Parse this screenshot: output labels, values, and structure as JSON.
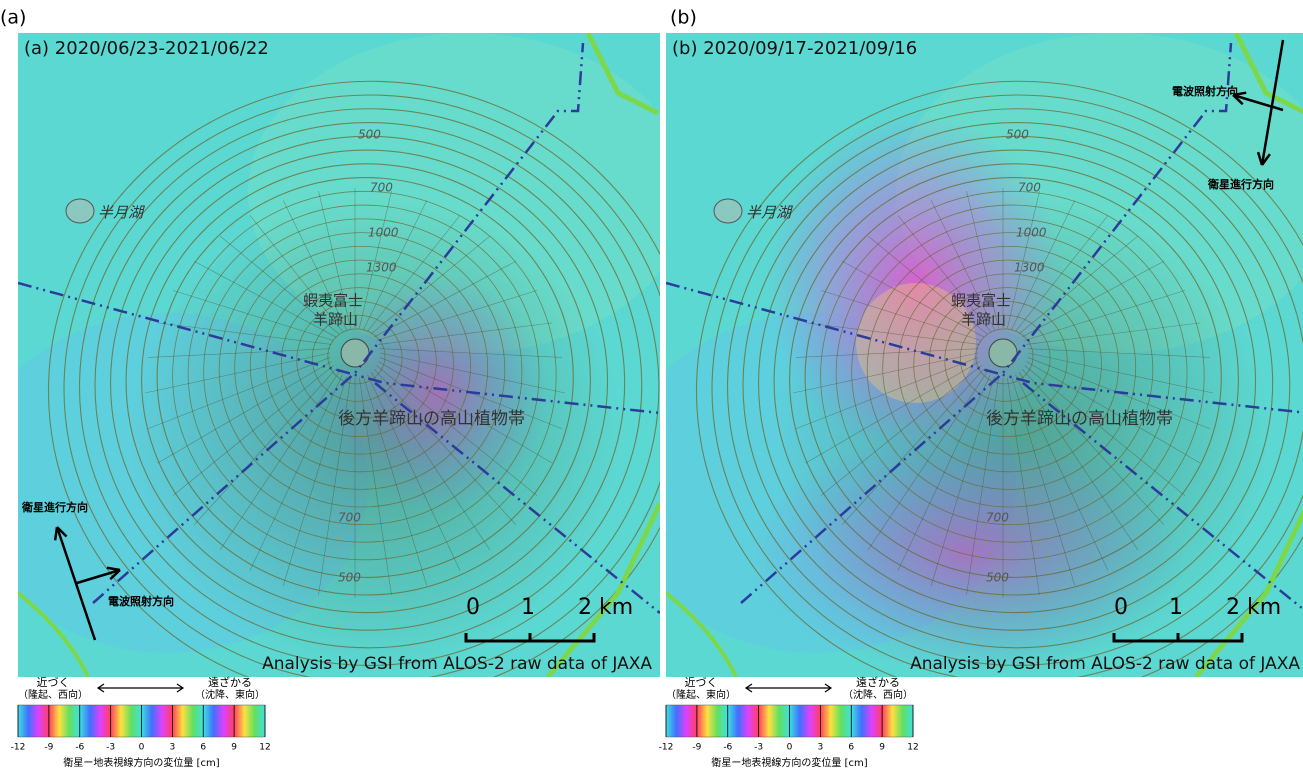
{
  "panels": [
    {
      "label": "(a)",
      "title": "(a) 2020/06/23-2021/06/22",
      "lake": "半月湖",
      "mountain": [
        "蝦夷富士",
        "羊蹄山"
      ],
      "zone": "後方羊蹄山の高山植物帯",
      "contours": [
        "500",
        "700",
        "1000",
        "1300",
        "700",
        "500"
      ],
      "flight_direction": "衛星進行方向",
      "look_direction": "電波照射方向",
      "scale": [
        "0",
        "1",
        "2 km"
      ],
      "credit": "Analysis by GSI from ALOS-2 raw data of JAXA",
      "colorbar": {
        "near": "近づく",
        "near_note": "（隆起、西向）",
        "far": "遠ざかる",
        "far_note": "（沈降、東向）",
        "ticks": [
          -12,
          -9,
          -6,
          -3,
          0,
          3,
          6,
          9,
          12
        ],
        "caption": "衛星ー地表視線方向の変位量 [cm]"
      }
    },
    {
      "label": "(b)",
      "title": "(b) 2020/09/17-2021/09/16",
      "lake": "半月湖",
      "mountain": [
        "蝦夷富士",
        "羊蹄山"
      ],
      "zone": "後方羊蹄山の高山植物帯",
      "contours": [
        "500",
        "700",
        "1000",
        "1300",
        "700",
        "500"
      ],
      "flight_direction": "衛星進行方向",
      "look_direction": "電波照射方向",
      "scale": [
        "0",
        "1",
        "2 km"
      ],
      "credit": "Analysis by GSI from ALOS-2 raw data of JAXA",
      "colorbar": {
        "near": "近づく",
        "near_note": "（隆起、東向）",
        "far": "遠ざかる",
        "far_note": "（沈降、西向）",
        "ticks": [
          -12,
          -9,
          -6,
          -3,
          0,
          3,
          6,
          9,
          12
        ],
        "caption": "衛星ー地表視線方向の変位量 [cm]"
      }
    }
  ]
}
